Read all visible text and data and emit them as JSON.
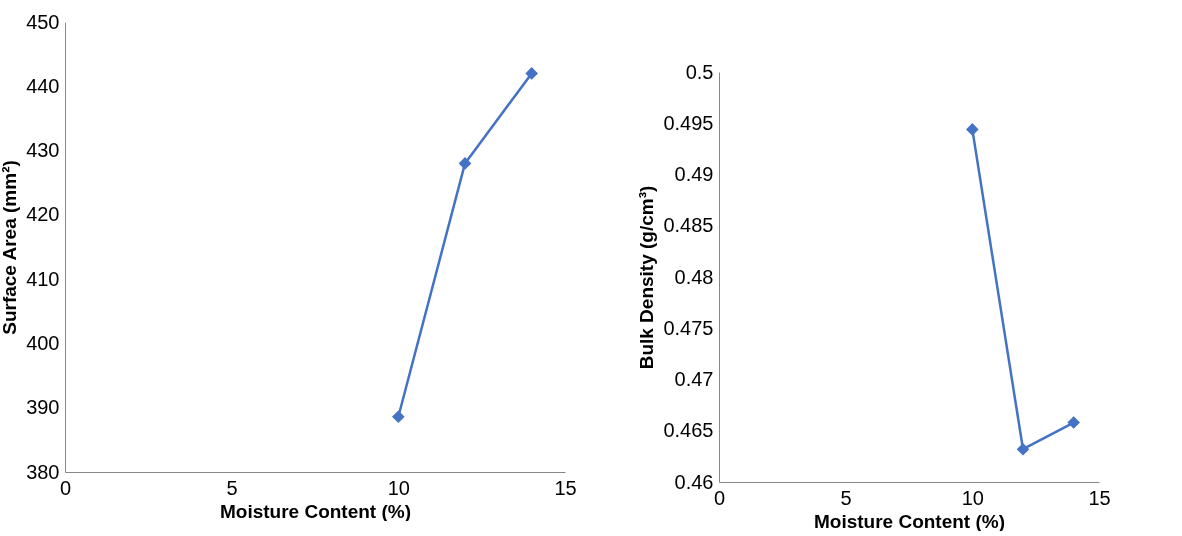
{
  "chart_data": [
    {
      "type": "line",
      "xlabel": "Moisture Content (%)",
      "ylabel": "Surface Area (mm²)",
      "x": [
        10,
        12,
        14
      ],
      "series": [
        {
          "color": "#4472c4",
          "values": [
            388.6,
            428,
            442
          ]
        }
      ],
      "xlim": [
        0,
        15
      ],
      "xticks": [
        0,
        5,
        10,
        15
      ],
      "ylim": [
        380,
        450
      ],
      "yticks": [
        380,
        390,
        400,
        410,
        420,
        430,
        440,
        450
      ],
      "grid": false,
      "marker": "diamond",
      "line_style": "solid"
    },
    {
      "type": "line",
      "xlabel": "Moisture Content (%)",
      "ylabel": "Bulk Density (g/cm³)",
      "x": [
        10,
        12,
        14
      ],
      "series": [
        {
          "color": "#4472c4",
          "values": [
            0.4944,
            0.4632,
            0.4658
          ]
        }
      ],
      "xlim": [
        0,
        15
      ],
      "xticks": [
        0,
        5,
        10,
        15
      ],
      "ylim": [
        0.46,
        0.5
      ],
      "yticks": [
        0.46,
        0.465,
        0.47,
        0.475,
        0.48,
        0.485,
        0.49,
        0.495,
        0.5
      ],
      "grid": false,
      "marker": "diamond",
      "line_style": "solid"
    }
  ]
}
